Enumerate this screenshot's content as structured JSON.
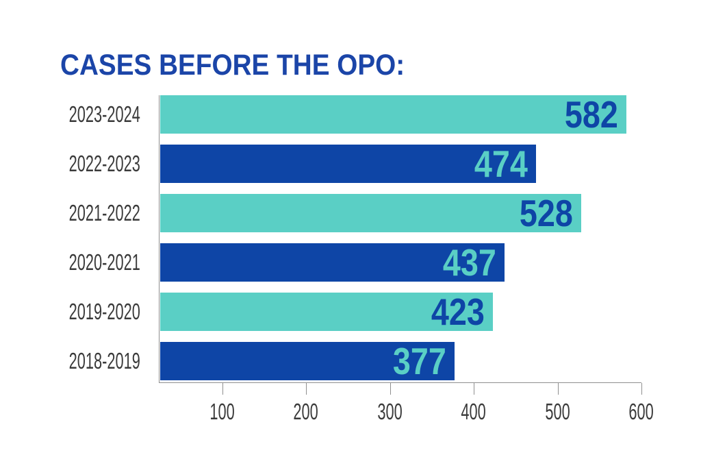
{
  "page": {
    "background": "#ffffff"
  },
  "title": {
    "text": "CASES BEFORE THE OPO:",
    "color": "#1b45a8"
  },
  "chart_data": {
    "type": "bar",
    "orientation": "horizontal",
    "title": "CASES BEFORE THE OPO:",
    "categories": [
      "2023-2024",
      "2022-2023",
      "2021-2022",
      "2020-2021",
      "2019-2020",
      "2018-2019"
    ],
    "values": [
      582,
      474,
      528,
      437,
      423,
      377
    ],
    "series": [
      {
        "name": "Cases before the OPO",
        "values": [
          582,
          474,
          528,
          437,
          423,
          377
        ]
      }
    ],
    "bar_colors": [
      "#5acfc5",
      "#0e45a6",
      "#5acfc5",
      "#0e45a6",
      "#5acfc5",
      "#0e45a6"
    ],
    "value_label_colors": [
      "#0e45a6",
      "#5acfc5",
      "#0e45a6",
      "#5acfc5",
      "#0e45a6",
      "#5acfc5"
    ],
    "x_ticks": [
      100,
      200,
      300,
      400,
      500,
      600
    ],
    "xlim": [
      0,
      600
    ],
    "xlabel": "",
    "ylabel": "",
    "grid": false,
    "legend_position": "none",
    "colors": {
      "teal": "#5acfc5",
      "blue": "#0e45a6",
      "title_text": "#1b45a8",
      "axis_line": "#8f8f8f",
      "tick_line": "#8f8f8f",
      "label_text": "#3a3a3a"
    }
  }
}
